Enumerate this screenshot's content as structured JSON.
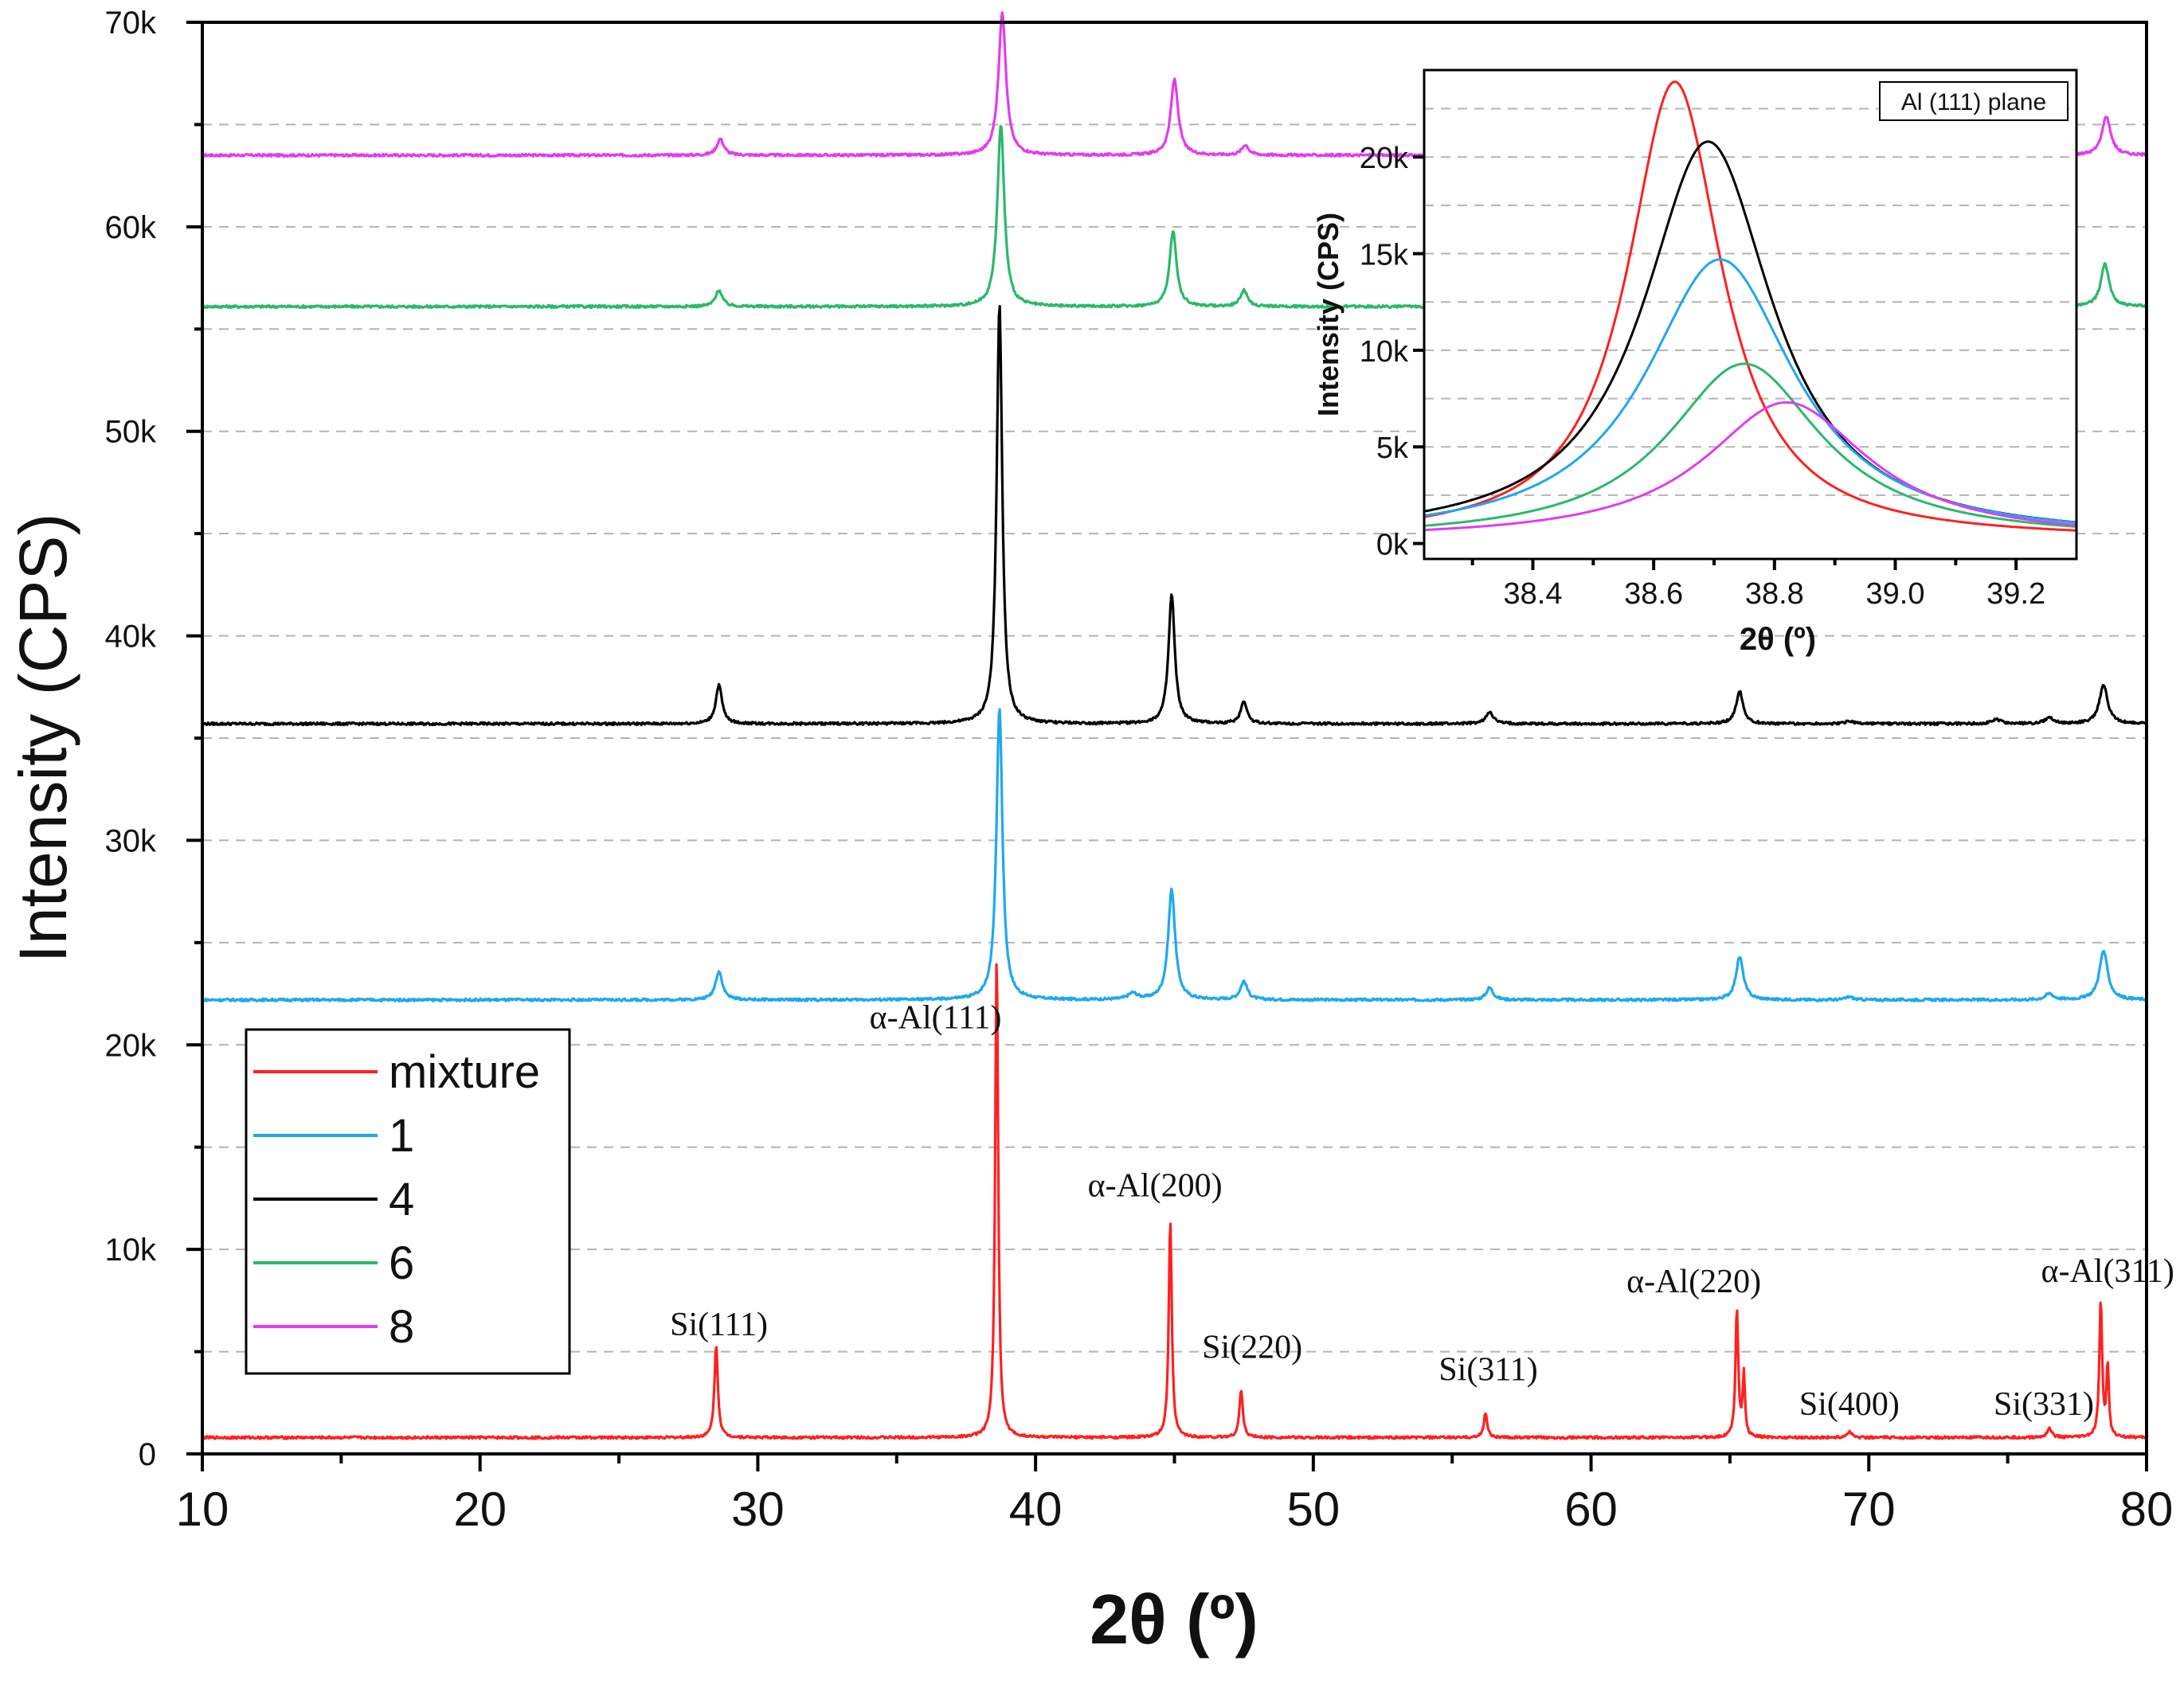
{
  "chart_data": [
    {
      "type": "line",
      "title": "",
      "xlabel": "2θ (º)",
      "ylabel": "Intensity (CPS)",
      "xlim": [
        10,
        80
      ],
      "ylim": [
        0,
        70000
      ],
      "x_ticks": [
        10,
        20,
        30,
        40,
        50,
        60,
        70,
        80
      ],
      "x_tick_labels": [
        "10",
        "20",
        "30",
        "40",
        "50",
        "60",
        "70",
        "80"
      ],
      "y_ticks": [
        0,
        10000,
        20000,
        30000,
        40000,
        50000,
        60000,
        70000
      ],
      "y_tick_labels": [
        "0",
        "10k",
        "20k",
        "30k",
        "40k",
        "50k",
        "60k",
        "70k"
      ],
      "grid": "horizontal dashed",
      "legend_position": "bottom-left",
      "series": [
        {
          "name": "mixture",
          "color": "#ff2020",
          "baseline": 800,
          "peaks": [
            [
              28.5,
              4500,
              0.15
            ],
            [
              38.6,
              23700,
              0.13
            ],
            [
              44.85,
              10700,
              0.13
            ],
            [
              47.4,
              2300,
              0.15
            ],
            [
              56.2,
              1200,
              0.15
            ],
            [
              65.25,
              6300,
              0.12
            ],
            [
              65.5,
              3000,
              0.1
            ],
            [
              69.3,
              300,
              0.2
            ],
            [
              76.5,
              450,
              0.2
            ],
            [
              78.35,
              6700,
              0.12
            ],
            [
              78.6,
              3500,
              0.1
            ]
          ]
        },
        {
          "name": "1",
          "color": "#1ea8f0",
          "baseline": 22200,
          "peaks": [
            [
              28.6,
              1400,
              0.3
            ],
            [
              38.7,
              14300,
              0.26
            ],
            [
              43.5,
              300,
              0.4
            ],
            [
              44.9,
              5400,
              0.3
            ],
            [
              47.5,
              900,
              0.3
            ],
            [
              56.35,
              600,
              0.3
            ],
            [
              65.35,
              2100,
              0.32
            ],
            [
              69.3,
              150,
              0.3
            ],
            [
              76.5,
              300,
              0.35
            ],
            [
              78.45,
              2400,
              0.36
            ]
          ]
        },
        {
          "name": "4",
          "color": "#000000",
          "baseline": 35700,
          "peaks": [
            [
              28.6,
              1900,
              0.27
            ],
            [
              38.7,
              20500,
              0.24
            ],
            [
              44.9,
              6300,
              0.27
            ],
            [
              47.5,
              1100,
              0.27
            ],
            [
              56.35,
              600,
              0.3
            ],
            [
              65.35,
              1600,
              0.3
            ],
            [
              69.3,
              150,
              0.3
            ],
            [
              74.6,
              200,
              0.4
            ],
            [
              76.5,
              300,
              0.35
            ],
            [
              78.45,
              1900,
              0.36
            ]
          ]
        },
        {
          "name": "6",
          "color": "#2ab96a",
          "baseline": 56100,
          "peaks": [
            [
              28.6,
              800,
              0.3
            ],
            [
              38.75,
              8900,
              0.3
            ],
            [
              44.95,
              3700,
              0.3
            ],
            [
              47.5,
              800,
              0.3
            ],
            [
              78.5,
              2100,
              0.36
            ]
          ]
        },
        {
          "name": "8",
          "color": "#e03cf0",
          "baseline": 63500,
          "peaks": [
            [
              28.65,
              800,
              0.3
            ],
            [
              38.8,
              7000,
              0.32
            ],
            [
              45.0,
              3700,
              0.32
            ],
            [
              47.55,
              500,
              0.3
            ],
            [
              78.55,
              1900,
              0.38
            ]
          ]
        }
      ],
      "annotations": [
        {
          "text": "Si(111)",
          "x": 28.6,
          "y": 5800
        },
        {
          "text": "α-Al(111)",
          "x": 36.4,
          "y": 20800
        },
        {
          "text": "α-Al(200)",
          "x": 44.3,
          "y": 12600
        },
        {
          "text": "Si(220)",
          "x": 47.8,
          "y": 4700
        },
        {
          "text": "Si(311)",
          "x": 56.3,
          "y": 3600
        },
        {
          "text": "α-Al(220)",
          "x": 63.7,
          "y": 7900
        },
        {
          "text": "Si(400)",
          "x": 69.3,
          "y": 1900
        },
        {
          "text": "Si(331)",
          "x": 76.3,
          "y": 1900
        },
        {
          "text": "α-Al(311)",
          "x": 78.6,
          "y": 8400
        }
      ]
    },
    {
      "type": "line",
      "title": "Al (111) plane",
      "xlabel": "2θ (º)",
      "ylabel": "Intensity (CPS)",
      "xlim": [
        38.22,
        39.3
      ],
      "ylim": [
        -800,
        24500
      ],
      "x_ticks": [
        38.4,
        38.6,
        38.8,
        39.0,
        39.2
      ],
      "x_tick_labels": [
        "38.4",
        "38.6",
        "38.8",
        "39.0",
        "39.2"
      ],
      "y_ticks": [
        0,
        5000,
        10000,
        15000,
        20000
      ],
      "y_tick_labels": [
        "0k",
        "5k",
        "10k",
        "15k",
        "20k"
      ],
      "grid": "horizontal dashed",
      "series": [
        {
          "name": "mixture",
          "color": "#ff2020",
          "center": 38.635,
          "peak": 23700,
          "width": 0.095
        },
        {
          "name": "4",
          "color": "#000000",
          "center": 38.69,
          "peak": 20600,
          "width": 0.13
        },
        {
          "name": "1",
          "color": "#1ea8f0",
          "center": 38.71,
          "peak": 14500,
          "width": 0.15
        },
        {
          "name": "6",
          "color": "#2ab96a",
          "center": 38.75,
          "peak": 9100,
          "width": 0.155
        },
        {
          "name": "8",
          "color": "#e03cf0",
          "center": 38.82,
          "peak": 7100,
          "width": 0.165
        }
      ]
    }
  ]
}
